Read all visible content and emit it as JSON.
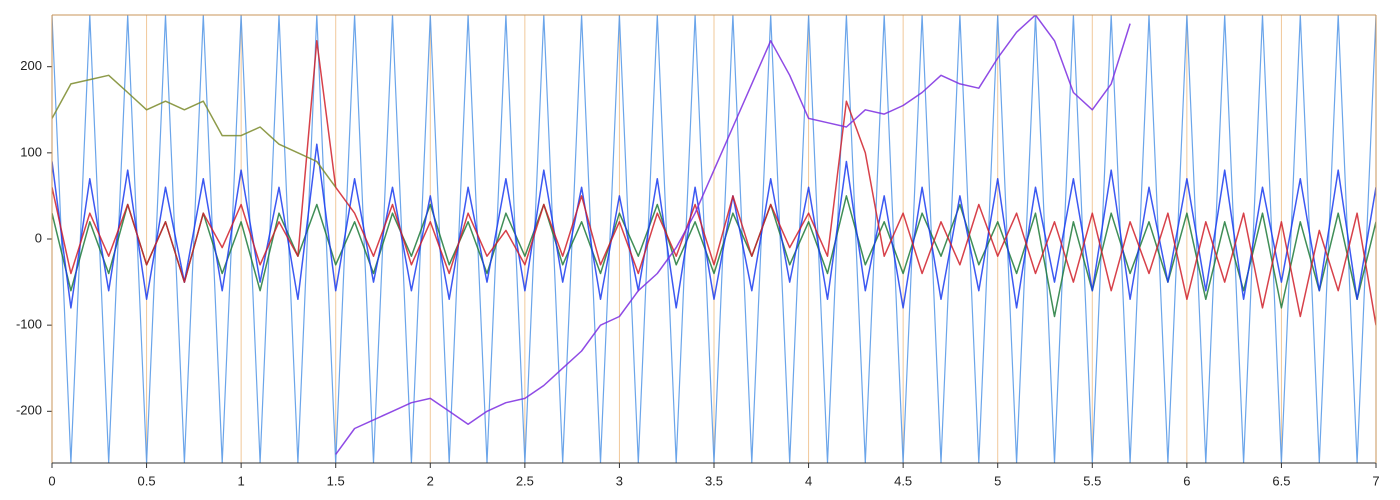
{
  "chart_data": {
    "type": "line",
    "x": [
      0,
      0.1,
      0.2,
      0.3,
      0.4,
      0.5,
      0.6,
      0.7,
      0.8,
      0.9,
      1,
      1.1,
      1.2,
      1.3,
      1.4,
      1.5,
      1.6,
      1.7,
      1.8,
      1.9,
      2,
      2.1,
      2.2,
      2.3,
      2.4,
      2.5,
      2.6,
      2.7,
      2.8,
      2.9,
      3,
      3.1,
      3.2,
      3.3,
      3.4,
      3.5,
      3.6,
      3.7,
      3.8,
      3.9,
      4,
      4.1,
      4.2,
      4.3,
      4.4,
      4.5,
      4.6,
      4.7,
      4.8,
      4.9,
      5,
      5.1,
      5.2,
      5.3,
      5.4,
      5.5,
      5.6,
      5.7,
      5.8,
      5.9,
      6,
      6.1,
      6.2,
      6.3,
      6.4,
      6.5,
      6.6,
      6.7,
      6.8,
      6.9,
      7
    ],
    "series": [
      {
        "color": "#5b9be8",
        "values": [
          260,
          -260,
          260,
          -260,
          260,
          -260,
          260,
          -260,
          260,
          -260,
          260,
          -260,
          260,
          -260,
          260,
          -260,
          260,
          -260,
          260,
          -260,
          260,
          -260,
          260,
          -260,
          260,
          -260,
          260,
          -260,
          260,
          -260,
          260,
          -260,
          260,
          -260,
          260,
          -260,
          260,
          -260,
          260,
          -260,
          260,
          -260,
          260,
          -260,
          260,
          -260,
          260,
          -260,
          260,
          -260,
          260,
          -260,
          260,
          -260,
          260,
          -260,
          260,
          -260,
          260,
          -260,
          260,
          -260,
          260,
          -260,
          260,
          -260,
          260,
          -260,
          260,
          -260,
          260
        ]
      },
      {
        "color": "#1f7a3a",
        "values": [
          30,
          -60,
          20,
          -40,
          40,
          -30,
          20,
          -50,
          30,
          -40,
          20,
          -60,
          30,
          -20,
          40,
          -30,
          20,
          -40,
          30,
          -20,
          40,
          -30,
          20,
          -40,
          30,
          -20,
          40,
          -30,
          20,
          -40,
          30,
          -20,
          40,
          -30,
          20,
          -40,
          30,
          -20,
          40,
          -30,
          20,
          -40,
          50,
          -30,
          20,
          -40,
          30,
          -20,
          40,
          -30,
          20,
          -40,
          30,
          -90,
          20,
          -60,
          30,
          -40,
          20,
          -50,
          30,
          -70,
          20,
          -60,
          30,
          -80,
          20,
          -60,
          30,
          -70,
          20
        ]
      },
      {
        "color": "#1a3cf0",
        "values": [
          90,
          -80,
          70,
          -60,
          80,
          -70,
          60,
          -50,
          70,
          -60,
          80,
          -50,
          60,
          -70,
          110,
          -60,
          70,
          -50,
          60,
          -60,
          50,
          -70,
          60,
          -50,
          70,
          -60,
          80,
          -50,
          60,
          -70,
          50,
          -60,
          70,
          -80,
          60,
          -70,
          50,
          -60,
          70,
          -50,
          60,
          -70,
          90,
          -60,
          50,
          -80,
          60,
          -70,
          50,
          -60,
          70,
          -80,
          60,
          -50,
          70,
          -60,
          80,
          -70,
          60,
          -50,
          70,
          -60,
          80,
          -70,
          60,
          -50,
          70,
          -60,
          80,
          -70,
          60
        ]
      },
      {
        "color": "#d0202a",
        "values": [
          60,
          -40,
          30,
          -20,
          40,
          -30,
          20,
          -50,
          30,
          -10,
          40,
          -30,
          20,
          -20,
          230,
          60,
          30,
          -20,
          40,
          -30,
          20,
          -40,
          30,
          -20,
          10,
          -30,
          40,
          -20,
          50,
          -30,
          20,
          -40,
          30,
          -20,
          40,
          -30,
          50,
          -20,
          40,
          -10,
          30,
          -20,
          160,
          100,
          -20,
          30,
          -40,
          20,
          -30,
          40,
          -20,
          30,
          -40,
          20,
          -50,
          30,
          -60,
          20,
          -40,
          30,
          -70,
          20,
          -50,
          30,
          -80,
          20,
          -90,
          10,
          -60,
          30,
          -100
        ]
      },
      {
        "color": "#7a8a2a",
        "values": [
          140,
          180,
          185,
          190,
          170,
          150,
          160,
          150,
          160,
          120,
          120,
          130,
          110,
          100,
          90,
          60,
          null,
          null,
          null,
          null,
          null,
          null,
          null,
          null,
          null,
          null,
          null,
          null,
          null,
          null,
          null,
          null,
          null,
          null,
          null,
          null,
          null,
          null,
          null,
          null,
          null,
          null,
          null,
          null,
          null,
          null,
          null,
          null,
          null,
          null,
          null,
          null,
          null,
          null,
          null,
          null,
          null,
          null,
          null,
          null,
          null,
          null,
          null,
          null,
          null,
          null,
          null,
          null,
          null,
          null,
          null
        ]
      },
      {
        "color": "#7b2be0",
        "values": [
          null,
          null,
          null,
          null,
          null,
          null,
          null,
          null,
          null,
          null,
          null,
          null,
          null,
          null,
          null,
          -250,
          -220,
          -210,
          -200,
          -190,
          -185,
          -200,
          -215,
          -200,
          -190,
          -185,
          -170,
          -150,
          -130,
          -100,
          -90,
          -60,
          -40,
          -10,
          30,
          80,
          130,
          180,
          230,
          190,
          140,
          135,
          130,
          150,
          145,
          155,
          170,
          190,
          180,
          175,
          210,
          240,
          260,
          230,
          170,
          150,
          180,
          250,
          null,
          null,
          null,
          null,
          null,
          null,
          null,
          null,
          null,
          null,
          null,
          null,
          null
        ]
      }
    ],
    "xlim": [
      0,
      7
    ],
    "xticks": [
      0,
      0.5,
      1,
      1.5,
      2,
      2.5,
      3,
      3.5,
      4,
      4.5,
      5,
      5.5,
      6,
      6.5,
      7
    ],
    "ylim": [
      -260,
      260
    ],
    "yticks": [
      -200,
      -100,
      0,
      100,
      200
    ],
    "xgrid": true
  }
}
